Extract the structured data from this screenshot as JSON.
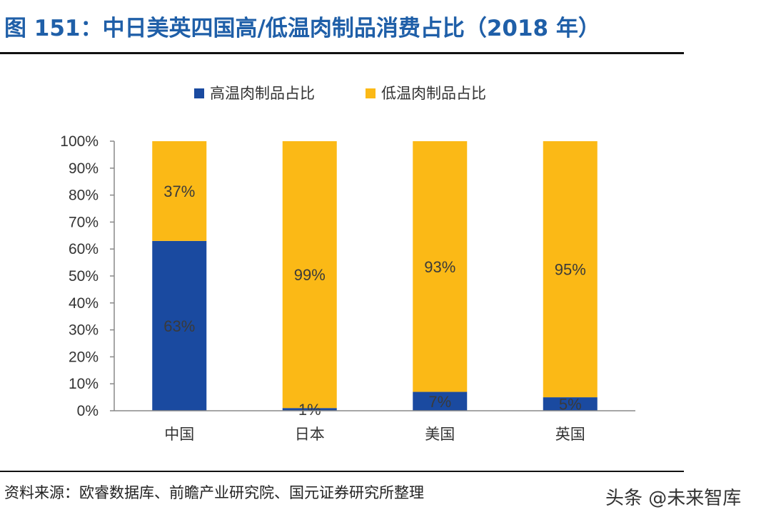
{
  "title": "图 151：中日美英四国高/低温肉制品消费占比（2018 年）",
  "source": "资料来源：欧睿数据库、前瞻产业研究院、国元证券研究所整理",
  "watermark": "头条 @未来智库",
  "colors": {
    "high": "#1a4aa0",
    "low": "#fbb916",
    "title": "#1f5fa8"
  },
  "chart_data": {
    "type": "bar",
    "stacked": true,
    "title": "",
    "xlabel": "",
    "ylabel": "",
    "categories": [
      "中国",
      "日本",
      "美国",
      "英国"
    ],
    "series": [
      {
        "name": "高温肉制品占比",
        "values": [
          63,
          1,
          7,
          5
        ],
        "labels": [
          "63%",
          "1%",
          "7%",
          "5%"
        ]
      },
      {
        "name": "低温肉制品占比",
        "values": [
          37,
          99,
          93,
          95
        ],
        "labels": [
          "37%",
          "99%",
          "93%",
          "95%"
        ]
      }
    ],
    "ylim": [
      0,
      100
    ],
    "yticks": [
      "0%",
      "10%",
      "20%",
      "30%",
      "40%",
      "50%",
      "60%",
      "70%",
      "80%",
      "90%",
      "100%"
    ],
    "grid": false,
    "legend": "top-center"
  }
}
